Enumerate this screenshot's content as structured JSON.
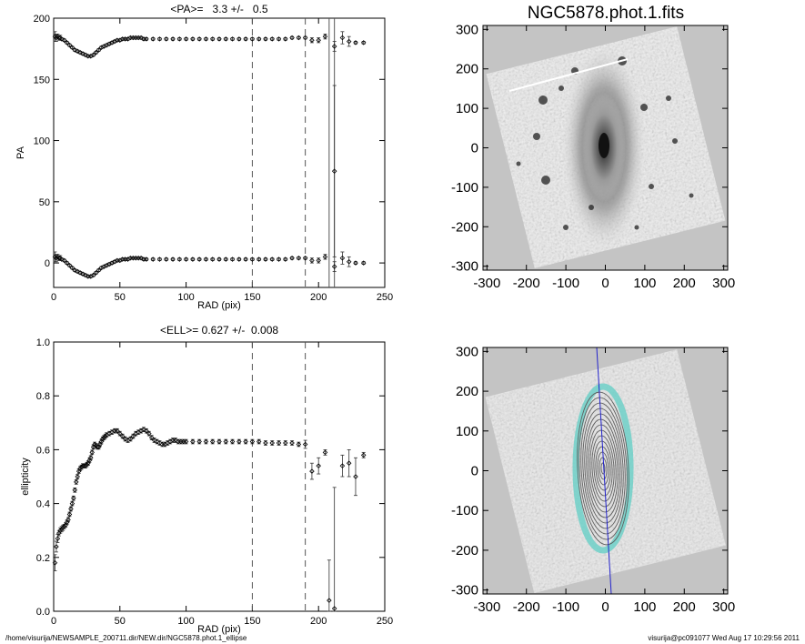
{
  "figure_title": "NGC5878.phot.1.fits",
  "footer": {
    "path": "/home/visurija/NEWSAMPLE_200711.dir/NEW.dir/NGC5878.phot.1_ellipse",
    "user_date": "visurija@pc091077  Wed Aug 17 10:29:56 2011"
  },
  "colors": {
    "background_gray": "#c4c4c4",
    "contour": "#5f5f5f",
    "contour_outer": "#6fd0c8",
    "major_axis_line": "#2222cc"
  },
  "chart_data": [
    {
      "type": "scatter",
      "title": "<PA>=   3.3 +/-   0.5",
      "xlabel": "RAD (pix)",
      "ylabel": "PA",
      "xlim": [
        0,
        250
      ],
      "ylim": [
        -20,
        200
      ],
      "x_ticks": [
        "0",
        "50",
        "100",
        "150",
        "200",
        "250"
      ],
      "y_ticks": [
        "0",
        "50",
        "100",
        "150",
        "200"
      ],
      "vertical_lines": [
        {
          "x": 150,
          "style": "dashed"
        },
        {
          "x": 190,
          "style": "dashed"
        },
        {
          "x": 208,
          "style": "solid"
        },
        {
          "x": 212,
          "style": "solid"
        }
      ],
      "series": [
        {
          "x": [
            1,
            2,
            3,
            4,
            5,
            6,
            8,
            10,
            12,
            14,
            16,
            18,
            20,
            22,
            24,
            26,
            28,
            30,
            32,
            34,
            36,
            38,
            40,
            42,
            44,
            46,
            48,
            50,
            52,
            54,
            56,
            58,
            60,
            62,
            64,
            66,
            68,
            70,
            75,
            80,
            85,
            90,
            95,
            100,
            105,
            110,
            115,
            120,
            125,
            130,
            135,
            140,
            145,
            150,
            155,
            160,
            165,
            170,
            175,
            180,
            185,
            190,
            195,
            200,
            205,
            212,
            218,
            223,
            228,
            234
          ],
          "y": [
            5,
            4,
            5,
            4,
            4,
            3,
            2,
            0,
            -2,
            -4,
            -6,
            -7,
            -8,
            -9,
            -10,
            -11,
            -11,
            -10,
            -8,
            -6,
            -4,
            -3,
            -2,
            -1,
            0,
            1,
            2,
            2,
            3,
            3,
            3,
            4,
            4,
            4,
            4,
            4,
            3,
            3,
            3,
            3,
            3,
            3,
            3,
            3,
            3,
            3,
            3,
            3,
            3,
            3,
            3,
            3,
            3,
            3,
            3,
            3,
            3,
            3,
            3,
            4,
            4,
            4,
            2,
            2,
            5,
            -3,
            4,
            1,
            0,
            0
          ],
          "err": [
            4,
            3,
            2,
            2,
            2,
            1,
            1,
            1,
            1,
            1,
            1,
            1,
            1,
            1,
            1,
            1,
            1,
            1,
            1,
            1,
            1,
            1,
            1,
            1,
            1,
            1,
            1,
            1,
            1,
            1,
            1,
            1,
            1,
            1,
            1,
            1,
            1,
            1,
            1,
            1,
            1,
            1,
            1,
            1,
            1,
            1,
            1,
            1,
            1,
            1,
            1,
            1,
            1,
            1,
            1,
            1,
            1,
            1,
            1,
            1,
            1,
            1,
            2,
            2,
            2,
            4,
            5,
            4,
            1,
            1
          ]
        },
        {
          "x": [
            1,
            2,
            3,
            4,
            5,
            6,
            8,
            10,
            12,
            14,
            16,
            18,
            20,
            22,
            24,
            26,
            28,
            30,
            32,
            34,
            36,
            38,
            40,
            42,
            44,
            46,
            48,
            50,
            52,
            54,
            56,
            58,
            60,
            62,
            64,
            66,
            68,
            70,
            75,
            80,
            85,
            90,
            95,
            100,
            105,
            110,
            115,
            120,
            125,
            130,
            135,
            140,
            145,
            150,
            155,
            160,
            165,
            170,
            175,
            180,
            185,
            190,
            195,
            200,
            205,
            212,
            218,
            223,
            228,
            234
          ],
          "y": [
            185,
            184,
            185,
            184,
            184,
            183,
            182,
            180,
            178,
            176,
            174,
            173,
            172,
            171,
            170,
            169,
            169,
            170,
            172,
            174,
            176,
            177,
            178,
            179,
            180,
            181,
            182,
            182,
            183,
            183,
            183,
            184,
            184,
            184,
            184,
            184,
            183,
            183,
            183,
            183,
            183,
            183,
            183,
            183,
            183,
            183,
            183,
            183,
            183,
            183,
            183,
            183,
            183,
            183,
            183,
            183,
            183,
            183,
            183,
            184,
            184,
            184,
            182,
            182,
            185,
            177,
            184,
            181,
            180,
            180
          ],
          "err": [
            4,
            3,
            2,
            2,
            2,
            1,
            1,
            1,
            1,
            1,
            1,
            1,
            1,
            1,
            1,
            1,
            1,
            1,
            1,
            1,
            1,
            1,
            1,
            1,
            1,
            1,
            1,
            1,
            1,
            1,
            1,
            1,
            1,
            1,
            1,
            1,
            1,
            1,
            1,
            1,
            1,
            1,
            1,
            1,
            1,
            1,
            1,
            1,
            1,
            1,
            1,
            1,
            1,
            1,
            1,
            1,
            1,
            1,
            1,
            1,
            1,
            1,
            2,
            2,
            2,
            4,
            5,
            4,
            1,
            1
          ]
        },
        {
          "x": [
            212
          ],
          "y": [
            75
          ],
          "err": [
            70
          ]
        }
      ]
    },
    {
      "type": "scatter",
      "title": "<ELL>= 0.627 +/-  0.008",
      "xlabel": "RAD (pix)",
      "ylabel": "ellipticity",
      "xlim": [
        0,
        250
      ],
      "ylim": [
        0,
        1
      ],
      "x_ticks": [
        "0",
        "50",
        "100",
        "150",
        "200",
        "250"
      ],
      "y_ticks": [
        "0.0",
        "0.2",
        "0.4",
        "0.6",
        "0.8",
        "1.0"
      ],
      "vertical_lines": [
        {
          "x": 150,
          "style": "dashed"
        },
        {
          "x": 190,
          "style": "dashed"
        }
      ],
      "series": [
        {
          "x": [
            1,
            2,
            3,
            4,
            5,
            6,
            7,
            8,
            9,
            10,
            11,
            12,
            13,
            14,
            15,
            16,
            17,
            18,
            19,
            20,
            21,
            22,
            23,
            24,
            25,
            26,
            27,
            28,
            29,
            30,
            31,
            32,
            33,
            34,
            35,
            36,
            37,
            38,
            39,
            40,
            42,
            44,
            46,
            48,
            50,
            52,
            54,
            56,
            58,
            60,
            62,
            64,
            66,
            68,
            70,
            72,
            74,
            76,
            78,
            80,
            82,
            84,
            86,
            88,
            90,
            92,
            94,
            96,
            98,
            100,
            105,
            110,
            115,
            120,
            125,
            130,
            135,
            140,
            145,
            150,
            155,
            160,
            165,
            170,
            175,
            180,
            185,
            190,
            195,
            200,
            205,
            208,
            212,
            218,
            223,
            228,
            234
          ],
          "y": [
            0.18,
            0.24,
            0.27,
            0.29,
            0.3,
            0.305,
            0.31,
            0.315,
            0.32,
            0.33,
            0.34,
            0.36,
            0.38,
            0.4,
            0.42,
            0.45,
            0.48,
            0.5,
            0.52,
            0.53,
            0.535,
            0.54,
            0.54,
            0.54,
            0.545,
            0.55,
            0.56,
            0.57,
            0.59,
            0.61,
            0.62,
            0.615,
            0.61,
            0.61,
            0.62,
            0.63,
            0.64,
            0.645,
            0.65,
            0.655,
            0.66,
            0.665,
            0.67,
            0.67,
            0.66,
            0.65,
            0.64,
            0.635,
            0.64,
            0.65,
            0.66,
            0.665,
            0.67,
            0.675,
            0.67,
            0.66,
            0.645,
            0.635,
            0.63,
            0.625,
            0.62,
            0.62,
            0.625,
            0.63,
            0.635,
            0.635,
            0.63,
            0.63,
            0.63,
            0.63,
            0.63,
            0.63,
            0.63,
            0.63,
            0.63,
            0.63,
            0.63,
            0.63,
            0.63,
            0.63,
            0.63,
            0.625,
            0.625,
            0.625,
            0.625,
            0.625,
            0.62,
            0.62,
            0.52,
            0.54,
            0.59,
            0.04,
            0.01,
            0.54,
            0.55,
            0.5,
            0.58
          ],
          "err": [
            0.03,
            0.02,
            0.015,
            0.01,
            0.01,
            0.01,
            0.01,
            0.008,
            0.008,
            0.008,
            0.008,
            0.008,
            0.008,
            0.008,
            0.008,
            0.008,
            0.008,
            0.008,
            0.008,
            0.008,
            0.008,
            0.008,
            0.008,
            0.008,
            0.008,
            0.008,
            0.008,
            0.008,
            0.008,
            0.008,
            0.008,
            0.008,
            0.008,
            0.008,
            0.008,
            0.008,
            0.008,
            0.008,
            0.008,
            0.008,
            0.008,
            0.008,
            0.008,
            0.008,
            0.008,
            0.008,
            0.008,
            0.008,
            0.008,
            0.008,
            0.008,
            0.008,
            0.008,
            0.008,
            0.008,
            0.008,
            0.008,
            0.008,
            0.008,
            0.008,
            0.008,
            0.008,
            0.008,
            0.008,
            0.008,
            0.008,
            0.008,
            0.008,
            0.008,
            0.008,
            0.008,
            0.008,
            0.008,
            0.008,
            0.008,
            0.008,
            0.008,
            0.008,
            0.008,
            0.008,
            0.008,
            0.008,
            0.008,
            0.008,
            0.008,
            0.008,
            0.008,
            0.015,
            0.03,
            0.03,
            0.01,
            0.15,
            0.45,
            0.04,
            0.05,
            0.07,
            0.01
          ]
        }
      ]
    },
    {
      "type": "heatmap",
      "title": "NGC5878.phot.1.fits",
      "xlim": [
        -310,
        310
      ],
      "ylim": [
        -310,
        310
      ],
      "x_ticks": [
        "-300",
        "-200",
        "-100",
        "0",
        "100",
        "200",
        "300"
      ],
      "y_ticks": [
        "-300",
        "-200",
        "-100",
        "0",
        "100",
        "200",
        "300"
      ]
    },
    {
      "type": "heatmap",
      "xlim": [
        -310,
        310
      ],
      "ylim": [
        -310,
        310
      ],
      "x_ticks": [
        "-300",
        "-200",
        "-100",
        "0",
        "100",
        "200",
        "300"
      ],
      "y_ticks": [
        "-300",
        "-200",
        "-100",
        "0",
        "100",
        "200",
        "300"
      ]
    }
  ]
}
